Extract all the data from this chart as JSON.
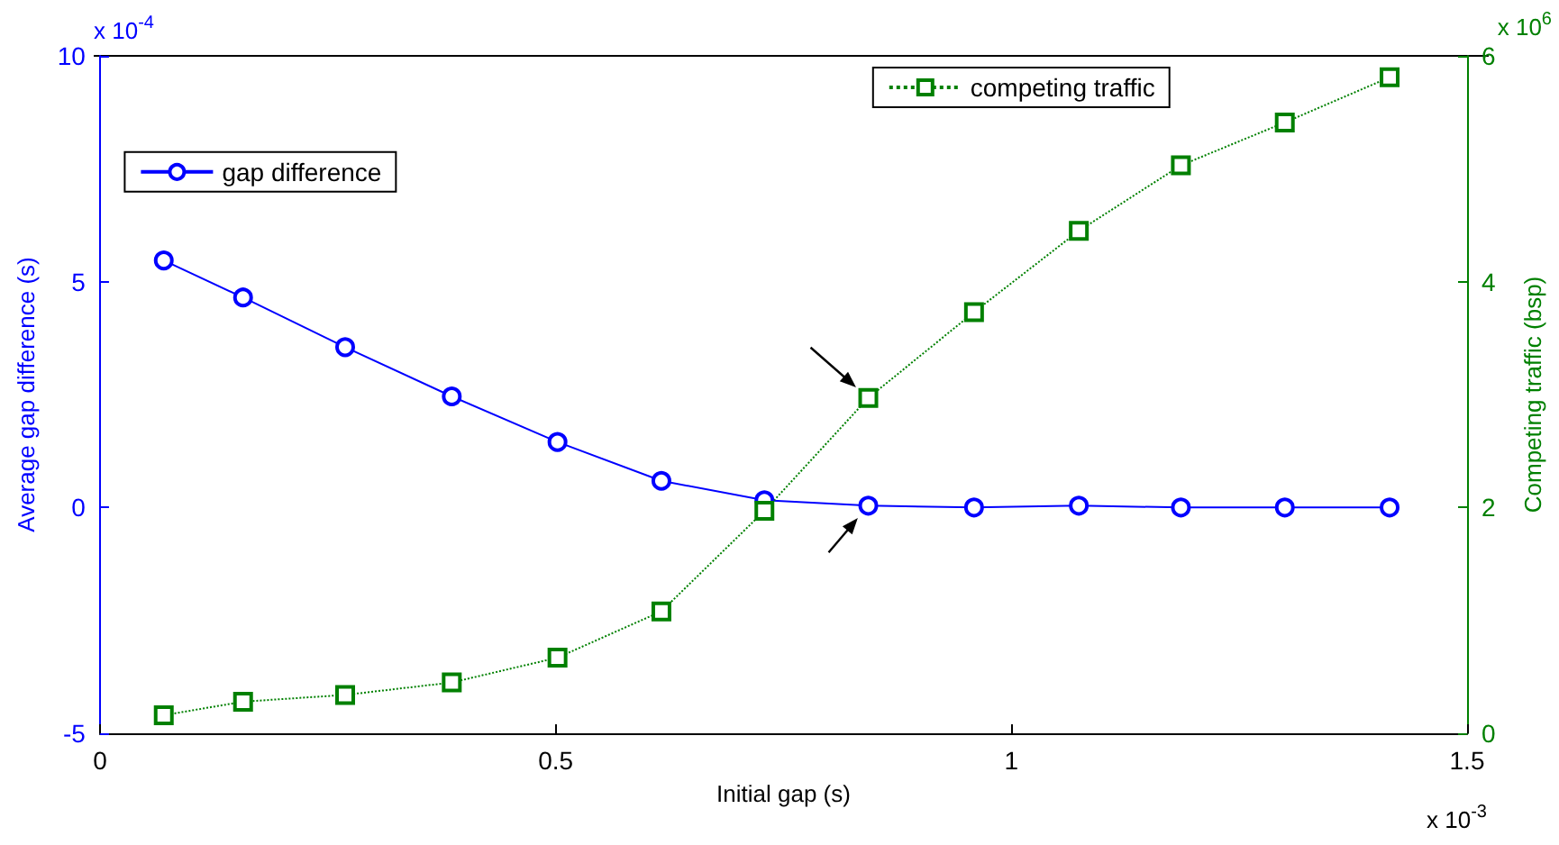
{
  "chart_data": {
    "type": "line",
    "xlabel": "Initial gap (s)",
    "ylabel": "Average gap difference (s)",
    "y2label": "Competing traffic (bsp)",
    "x": [
      0.07,
      0.157,
      0.269,
      0.386,
      0.502,
      0.616,
      0.729,
      0.843,
      0.959,
      1.074,
      1.186,
      1.3,
      1.415
    ],
    "series": [
      {
        "name": "gap difference",
        "color": "#0000ff",
        "marker": "circle",
        "line_style": "solid",
        "values": [
          5.47,
          4.65,
          3.55,
          2.46,
          1.45,
          0.59,
          0.16,
          0.04,
          0,
          0.04,
          0,
          0,
          0
        ]
      },
      {
        "name": "competing traffic",
        "color": "#008000",
        "marker": "square",
        "line_style": "dotted",
        "axis": "y2",
        "values": [
          0.16,
          0.28,
          0.34,
          0.45,
          0.67,
          1.08,
          1.97,
          2.97,
          3.73,
          4.45,
          5.03,
          5.41,
          5.81
        ]
      }
    ],
    "xlim": [
      0,
      1.5
    ],
    "xticks": [
      0,
      0.5,
      1,
      1.5
    ],
    "ylim": [
      -5,
      10
    ],
    "yticks": [
      -5,
      0,
      5,
      10
    ],
    "y2lim": [
      0,
      6
    ],
    "y2ticks": [
      0,
      2,
      4,
      6
    ],
    "annotations": [
      "x 10$^{-4}$",
      "x 10$^{6}$",
      "x 10$^{-3}$"
    ],
    "grid": false,
    "legend": "top"
  }
}
